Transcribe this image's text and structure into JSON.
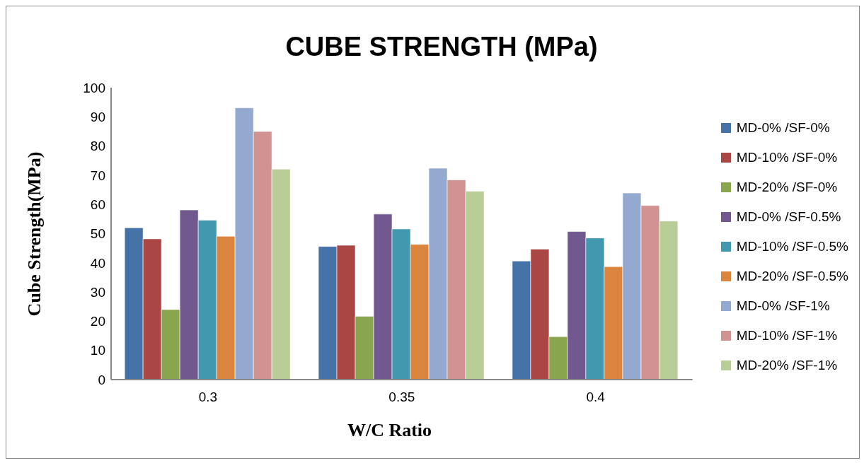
{
  "chart_data": {
    "type": "bar",
    "title": "CUBE STRENGTH (MPa)",
    "xlabel": "W/C Ratio",
    "ylabel": "Cube Strength(MPa)",
    "categories": [
      "0.3",
      "0.35",
      "0.4"
    ],
    "series": [
      {
        "name": "MD-0% /SF-0%",
        "color": "#4572a7",
        "values": [
          52.0,
          45.6,
          40.6
        ]
      },
      {
        "name": "MD-10% /SF-0%",
        "color": "#aa4643",
        "values": [
          48.2,
          46.0,
          44.7
        ]
      },
      {
        "name": "MD-20% /SF-0%",
        "color": "#89a54e",
        "values": [
          24.0,
          21.7,
          14.7
        ]
      },
      {
        "name": "MD-0% /SF-0.5%",
        "color": "#71588f",
        "values": [
          58.1,
          56.7,
          50.7
        ]
      },
      {
        "name": "MD-10% /SF-0.5%",
        "color": "#4198af",
        "values": [
          54.6,
          51.6,
          48.5
        ]
      },
      {
        "name": "MD-20% /SF-0.5%",
        "color": "#db843d",
        "values": [
          49.1,
          46.3,
          38.7
        ]
      },
      {
        "name": "MD-0% /SF-1%",
        "color": "#93a9cf",
        "values": [
          93.1,
          72.4,
          63.9
        ]
      },
      {
        "name": "MD-10% /SF-1%",
        "color": "#d19392",
        "values": [
          85.0,
          68.4,
          59.6
        ]
      },
      {
        "name": "MD-20% /SF-1%",
        "color": "#b9cd96",
        "values": [
          72.1,
          64.5,
          54.3
        ]
      }
    ],
    "ylim": [
      0,
      100
    ],
    "yticks": [
      0,
      10,
      20,
      30,
      40,
      50,
      60,
      70,
      80,
      90,
      100
    ],
    "grid": false,
    "legend": "right"
  }
}
